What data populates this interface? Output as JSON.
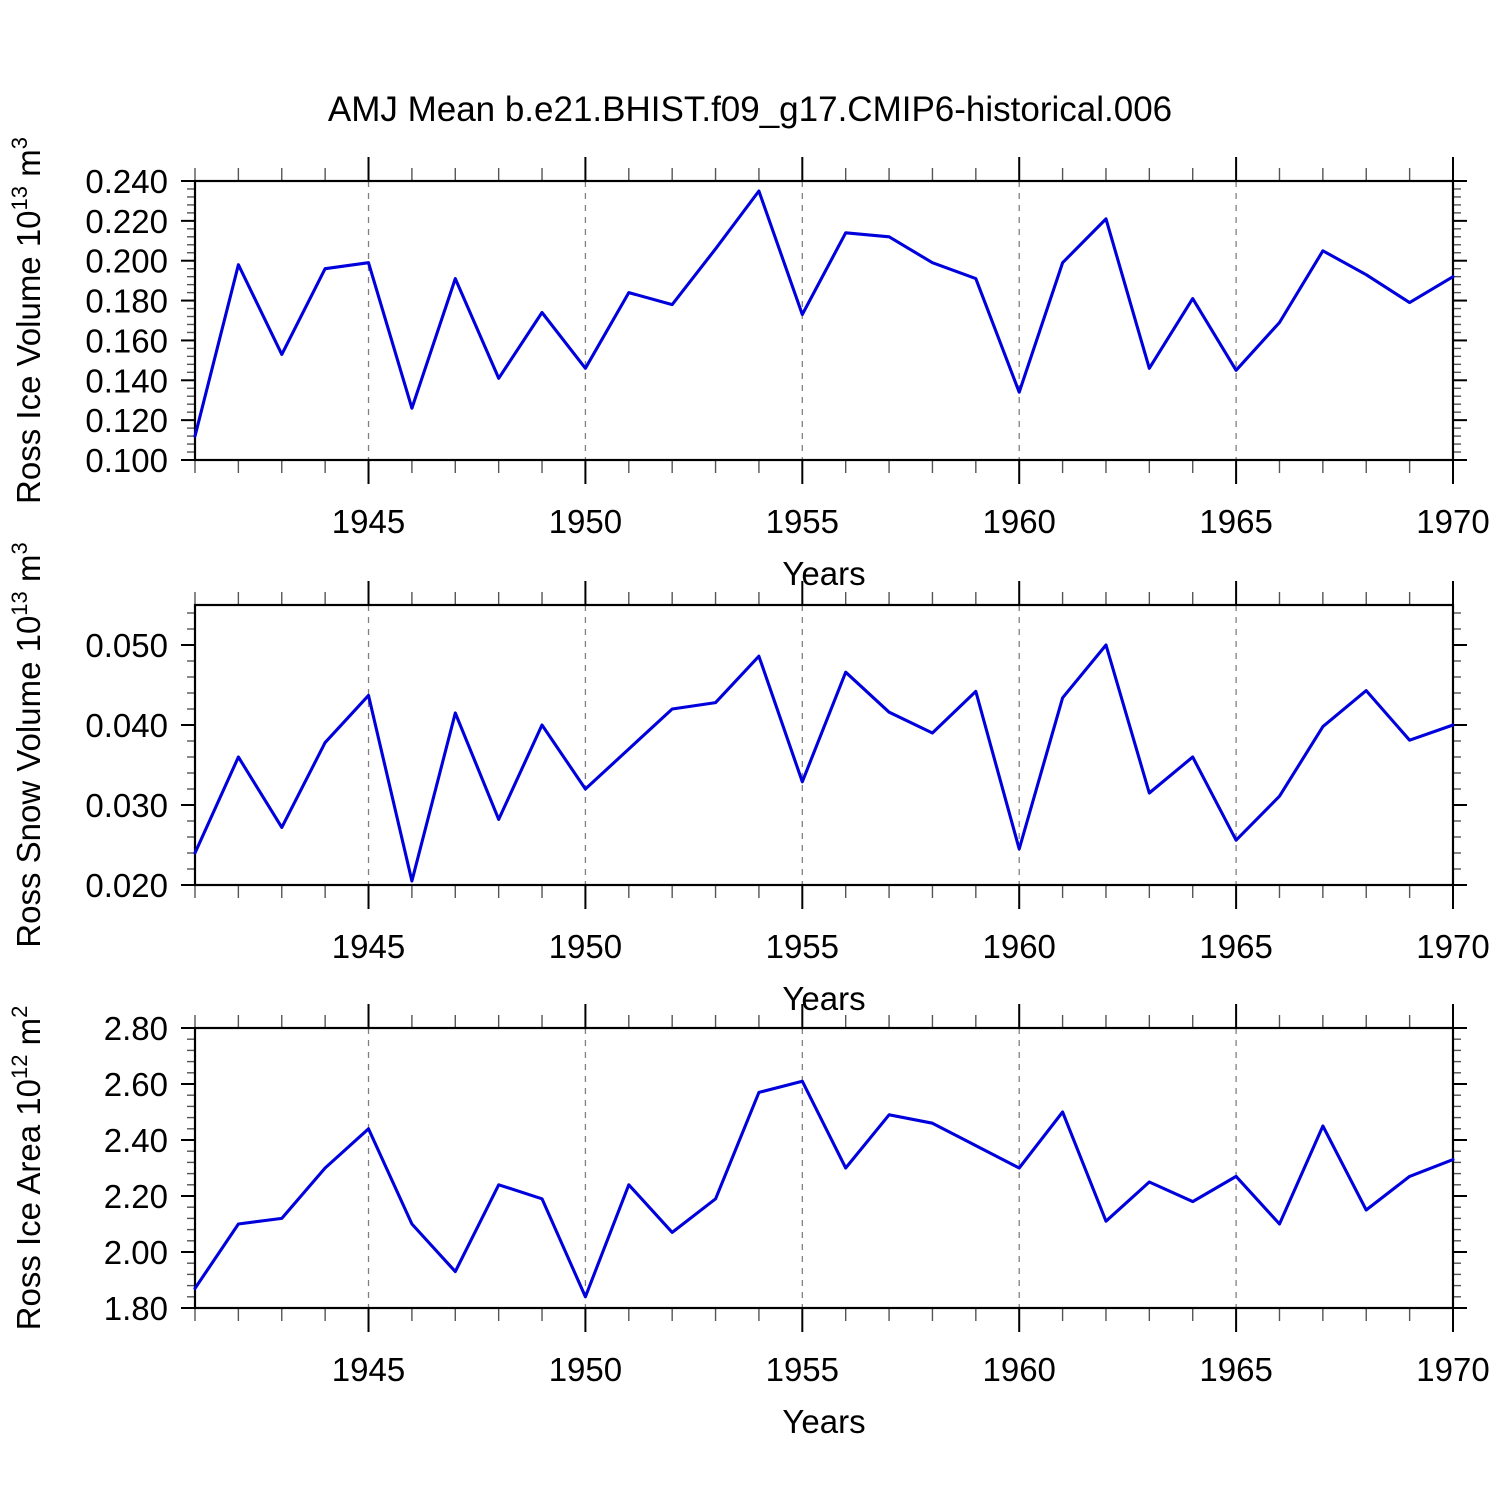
{
  "figure_title": "AMJ Mean b.e21.BHIST.f09_g17.CMIP6-historical.006",
  "colors": {
    "line": "#0000dd",
    "grid": "#808080",
    "axis": "#000000",
    "minor_tick": "#555555",
    "background": "#ffffff"
  },
  "x_axis": {
    "label": "Years",
    "start": 1941,
    "end": 1970,
    "major_tick_years": [
      1945,
      1950,
      1955,
      1960,
      1965,
      1970
    ],
    "gridline_years": [
      1945,
      1950,
      1955,
      1960,
      1965
    ],
    "years": [
      1941,
      1942,
      1943,
      1944,
      1945,
      1946,
      1947,
      1948,
      1949,
      1950,
      1951,
      1952,
      1953,
      1954,
      1955,
      1956,
      1957,
      1958,
      1959,
      1960,
      1961,
      1962,
      1963,
      1964,
      1965,
      1966,
      1967,
      1968,
      1969,
      1970
    ]
  },
  "chart_data": [
    {
      "type": "line",
      "name": "ross-ice-volume",
      "ylabel_parts": [
        [
          "Ross Ice Volume 10",
          false
        ],
        [
          "13",
          true
        ],
        [
          " m",
          false
        ],
        [
          "3",
          true
        ]
      ],
      "ylabel_plain": "Ross Ice Volume 10^13 m^3",
      "xlabel": "Years",
      "ylim": [
        0.1,
        0.24
      ],
      "ytick_step": 0.02,
      "yminor_step": 0.004,
      "ytick_decimals": 3,
      "grid": "x-dashed",
      "values": [
        0.112,
        0.198,
        0.153,
        0.196,
        0.199,
        0.126,
        0.191,
        0.141,
        0.174,
        0.146,
        0.184,
        0.178,
        0.206,
        0.235,
        0.173,
        0.214,
        0.212,
        0.199,
        0.191,
        0.134,
        0.199,
        0.221,
        0.146,
        0.181,
        0.145,
        0.169,
        0.205,
        0.193,
        0.179,
        0.192
      ]
    },
    {
      "type": "line",
      "name": "ross-snow-volume",
      "ylabel_parts": [
        [
          "Ross Snow Volume 10",
          false
        ],
        [
          "13",
          true
        ],
        [
          " m",
          false
        ],
        [
          "3",
          true
        ]
      ],
      "ylabel_plain": "Ross Snow Volume 10^13 m^3",
      "xlabel": "Years",
      "ylim": [
        0.02,
        0.055
      ],
      "ytick_step": 0.01,
      "yminor_step": 0.002,
      "ytick_decimals": 3,
      "grid": "x-dashed",
      "values": [
        0.024,
        0.036,
        0.0272,
        0.0378,
        0.0437,
        0.0205,
        0.0415,
        0.0282,
        0.04,
        0.032,
        0.037,
        0.042,
        0.0428,
        0.0486,
        0.0329,
        0.0466,
        0.0416,
        0.039,
        0.0442,
        0.0245,
        0.0434,
        0.05,
        0.0315,
        0.036,
        0.0256,
        0.0311,
        0.0398,
        0.0443,
        0.0381,
        0.04
      ]
    },
    {
      "type": "line",
      "name": "ross-ice-area",
      "ylabel_parts": [
        [
          "Ross Ice Area 10",
          false
        ],
        [
          "12",
          true
        ],
        [
          " m",
          false
        ],
        [
          "2",
          true
        ]
      ],
      "ylabel_plain": "Ross Ice Area 10^12 m^2",
      "xlabel": "Years",
      "ylim": [
        1.8,
        2.8
      ],
      "ytick_step": 0.2,
      "yminor_step": 0.04,
      "ytick_decimals": 2,
      "grid": "x-dashed",
      "values": [
        1.87,
        2.1,
        2.12,
        2.3,
        2.44,
        2.1,
        1.93,
        2.24,
        2.19,
        1.84,
        2.24,
        2.07,
        2.19,
        2.57,
        2.61,
        2.3,
        2.49,
        2.46,
        2.38,
        2.3,
        2.5,
        2.11,
        2.25,
        2.18,
        2.27,
        2.1,
        2.45,
        2.15,
        2.27,
        2.33
      ]
    }
  ]
}
